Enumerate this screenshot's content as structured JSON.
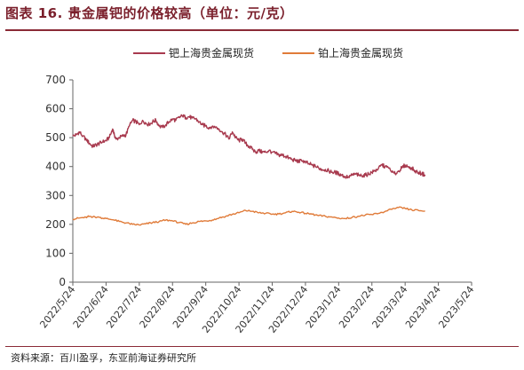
{
  "header": {
    "title": "图表 16. 贵金属钯的价格较高（单位：元/克）"
  },
  "footer": {
    "source": "资料来源：百川盈孚，东亚前海证券研究所"
  },
  "colors": {
    "palladium": "#a83a4e",
    "platinum": "#e07b39",
    "brand": "#8a2a36"
  },
  "chart_data": {
    "type": "line",
    "title": "",
    "xlabel": "",
    "ylabel": "",
    "ylim": [
      0,
      700
    ],
    "yticks": [
      0,
      100,
      200,
      300,
      400,
      500,
      600,
      700
    ],
    "x_tick_labels": [
      "2022/5/24",
      "2022/6/24",
      "2022/7/24",
      "2022/8/24",
      "2022/9/24",
      "2022/10/24",
      "2022/11/24",
      "2022/12/24",
      "2023/1/24",
      "2023/2/24",
      "2023/3/24",
      "2023/4/24",
      "2023/5/24"
    ],
    "legend_position": "top",
    "grid": false,
    "series": [
      {
        "name": "钯上海贵金属现货",
        "color": "#a83a4e",
        "points": [
          [
            0,
            505
          ],
          [
            0.1,
            510
          ],
          [
            0.2,
            520
          ],
          [
            0.3,
            505
          ],
          [
            0.4,
            495
          ],
          [
            0.5,
            480
          ],
          [
            0.6,
            470
          ],
          [
            0.7,
            475
          ],
          [
            0.8,
            480
          ],
          [
            0.9,
            485
          ],
          [
            1.0,
            490
          ],
          [
            1.1,
            500
          ],
          [
            1.2,
            530
          ],
          [
            1.25,
            510
          ],
          [
            1.3,
            495
          ],
          [
            1.4,
            500
          ],
          [
            1.5,
            505
          ],
          [
            1.6,
            510
          ],
          [
            1.7,
            540
          ],
          [
            1.8,
            560
          ],
          [
            1.9,
            555
          ],
          [
            2.0,
            545
          ],
          [
            2.1,
            560
          ],
          [
            2.2,
            550
          ],
          [
            2.3,
            545
          ],
          [
            2.4,
            555
          ],
          [
            2.5,
            560
          ],
          [
            2.6,
            540
          ],
          [
            2.7,
            535
          ],
          [
            2.8,
            545
          ],
          [
            2.9,
            555
          ],
          [
            3.0,
            565
          ],
          [
            3.1,
            560
          ],
          [
            3.2,
            570
          ],
          [
            3.3,
            575
          ],
          [
            3.4,
            570
          ],
          [
            3.5,
            572
          ],
          [
            3.6,
            568
          ],
          [
            3.7,
            565
          ],
          [
            3.8,
            555
          ],
          [
            3.9,
            545
          ],
          [
            4.0,
            540
          ],
          [
            4.1,
            535
          ],
          [
            4.2,
            540
          ],
          [
            4.3,
            535
          ],
          [
            4.4,
            530
          ],
          [
            4.5,
            520
          ],
          [
            4.6,
            510
          ],
          [
            4.7,
            495
          ],
          [
            4.8,
            520
          ],
          [
            4.9,
            500
          ],
          [
            5.0,
            490
          ],
          [
            5.1,
            495
          ],
          [
            5.2,
            480
          ],
          [
            5.3,
            470
          ],
          [
            5.4,
            460
          ],
          [
            5.5,
            450
          ],
          [
            5.6,
            455
          ],
          [
            5.7,
            450
          ],
          [
            5.8,
            450
          ],
          [
            5.9,
            455
          ],
          [
            6.0,
            450
          ],
          [
            6.1,
            445
          ],
          [
            6.2,
            440
          ],
          [
            6.3,
            440
          ],
          [
            6.4,
            435
          ],
          [
            6.5,
            430
          ],
          [
            6.6,
            425
          ],
          [
            6.7,
            420
          ],
          [
            6.8,
            418
          ],
          [
            6.9,
            420
          ],
          [
            7.0,
            415
          ],
          [
            7.1,
            410
          ],
          [
            7.2,
            405
          ],
          [
            7.3,
            400
          ],
          [
            7.4,
            395
          ],
          [
            7.5,
            390
          ],
          [
            7.6,
            390
          ],
          [
            7.7,
            385
          ],
          [
            7.8,
            380
          ],
          [
            7.9,
            380
          ],
          [
            8.0,
            375
          ],
          [
            8.1,
            370
          ],
          [
            8.2,
            365
          ],
          [
            8.3,
            365
          ],
          [
            8.4,
            370
          ],
          [
            8.5,
            375
          ],
          [
            8.6,
            370
          ],
          [
            8.7,
            368
          ],
          [
            8.8,
            370
          ],
          [
            8.9,
            375
          ],
          [
            9.0,
            380
          ],
          [
            9.1,
            385
          ],
          [
            9.2,
            395
          ],
          [
            9.3,
            405
          ],
          [
            9.4,
            400
          ],
          [
            9.5,
            395
          ],
          [
            9.6,
            380
          ],
          [
            9.7,
            375
          ],
          [
            9.8,
            385
          ],
          [
            9.9,
            395
          ],
          [
            10.0,
            405
          ],
          [
            10.1,
            400
          ],
          [
            10.2,
            395
          ],
          [
            10.3,
            385
          ],
          [
            10.4,
            380
          ],
          [
            10.5,
            375
          ],
          [
            10.6,
            372
          ]
        ]
      },
      {
        "name": "铂上海贵金属现货",
        "color": "#e07b39",
        "points": [
          [
            0,
            218
          ],
          [
            0.2,
            222
          ],
          [
            0.4,
            224
          ],
          [
            0.5,
            228
          ],
          [
            0.6,
            226
          ],
          [
            0.8,
            224
          ],
          [
            1.0,
            220
          ],
          [
            1.2,
            216
          ],
          [
            1.4,
            210
          ],
          [
            1.6,
            205
          ],
          [
            1.8,
            200
          ],
          [
            2.0,
            198
          ],
          [
            2.2,
            202
          ],
          [
            2.4,
            206
          ],
          [
            2.6,
            210
          ],
          [
            2.8,
            215
          ],
          [
            3.0,
            212
          ],
          [
            3.2,
            206
          ],
          [
            3.4,
            200
          ],
          [
            3.6,
            205
          ],
          [
            3.8,
            210
          ],
          [
            4.0,
            212
          ],
          [
            4.2,
            215
          ],
          [
            4.4,
            222
          ],
          [
            4.6,
            228
          ],
          [
            4.8,
            235
          ],
          [
            5.0,
            240
          ],
          [
            5.2,
            248
          ],
          [
            5.4,
            245
          ],
          [
            5.6,
            240
          ],
          [
            5.8,
            238
          ],
          [
            6.0,
            235
          ],
          [
            6.2,
            236
          ],
          [
            6.4,
            240
          ],
          [
            6.6,
            245
          ],
          [
            6.8,
            242
          ],
          [
            7.0,
            238
          ],
          [
            7.2,
            235
          ],
          [
            7.4,
            230
          ],
          [
            7.6,
            228
          ],
          [
            7.8,
            225
          ],
          [
            8.0,
            222
          ],
          [
            8.2,
            220
          ],
          [
            8.4,
            224
          ],
          [
            8.6,
            228
          ],
          [
            8.8,
            232
          ],
          [
            9.0,
            234
          ],
          [
            9.2,
            238
          ],
          [
            9.4,
            245
          ],
          [
            9.6,
            252
          ],
          [
            9.8,
            258
          ],
          [
            10.0,
            255
          ],
          [
            10.2,
            250
          ],
          [
            10.4,
            248
          ],
          [
            10.6,
            246
          ]
        ]
      }
    ]
  }
}
